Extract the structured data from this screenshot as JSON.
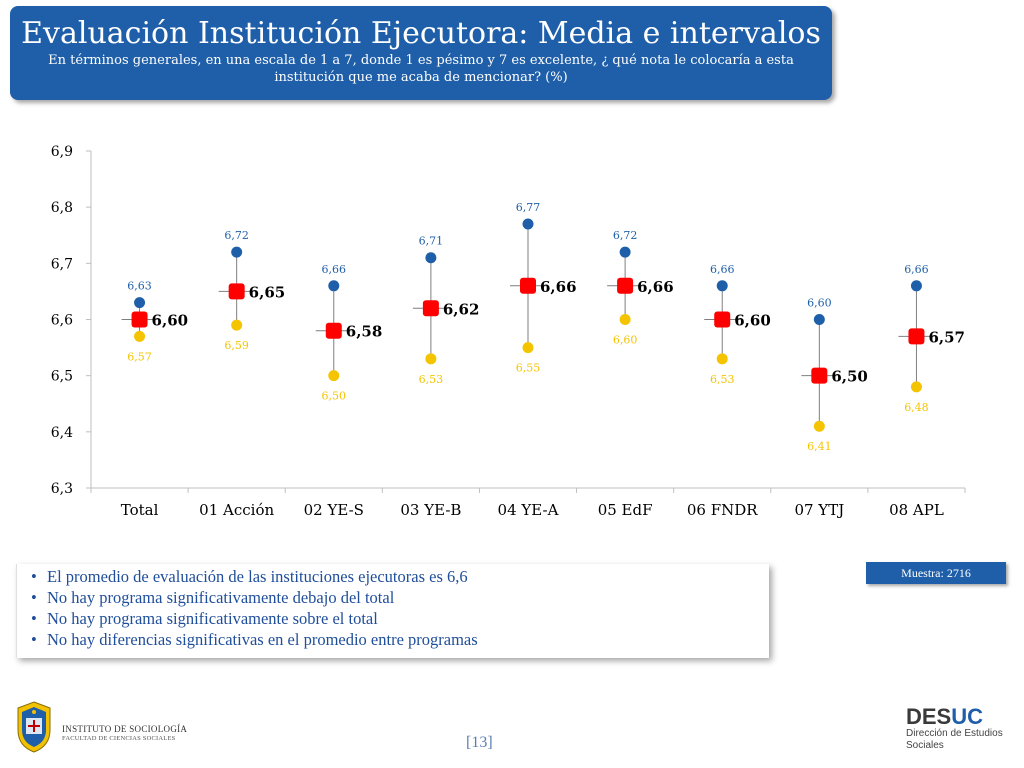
{
  "header": {
    "title": "Evaluación Institución Ejecutora: Media e intervalos",
    "subtitle": "En términos generales, en una escala de 1 a 7, donde 1 es pésimo y 7 es excelente, ¿ qué nota le colocaría a esta institución que me acaba de mencionar? (%)"
  },
  "chart_data": {
    "type": "scatter",
    "categories": [
      "Total",
      "01 Acción",
      "02 YE-S",
      "03 YE-B",
      "04 YE-A",
      "05 EdF",
      "06 FNDR",
      "07 YTJ",
      "08 APL"
    ],
    "upper": [
      6.63,
      6.72,
      6.66,
      6.71,
      6.77,
      6.72,
      6.66,
      6.6,
      6.66
    ],
    "mean": [
      6.6,
      6.65,
      6.58,
      6.62,
      6.66,
      6.66,
      6.6,
      6.5,
      6.57
    ],
    "lower": [
      6.57,
      6.59,
      6.5,
      6.53,
      6.55,
      6.6,
      6.53,
      6.41,
      6.48
    ],
    "upper_labels": [
      "6,63",
      "6,72",
      "6,66",
      "6,71",
      "6,77",
      "6,72",
      "6,66",
      "6,60",
      "6,66"
    ],
    "mean_labels": [
      "6,60",
      "6,65",
      "6,58",
      "6,62",
      "6,66",
      "6,66",
      "6,60",
      "6,50",
      "6,57"
    ],
    "lower_labels": [
      "6,57",
      "6,59",
      "6,50",
      "6,53",
      "6,55",
      "6,60",
      "6,53",
      "6,41",
      "6,48"
    ],
    "ylim": [
      6.3,
      6.9
    ],
    "yticks": [
      6.3,
      6.4,
      6.5,
      6.6,
      6.7,
      6.8,
      6.9
    ],
    "ytick_labels": [
      "6,3",
      "6,4",
      "6,5",
      "6,6",
      "6,7",
      "6,8",
      "6,9"
    ],
    "colors": {
      "upper": "#1f5fa9",
      "mean": "#ff0000",
      "lower": "#f5c400",
      "axis": "#bfbfbf",
      "whisker": "#7f7f7f"
    }
  },
  "notes": [
    "El promedio de evaluación de las instituciones ejecutoras es 6,6",
    "No hay programa significativamente debajo del total",
    "No hay programa significativamente sobre el total",
    "No hay diferencias significativas en el promedio entre programas"
  ],
  "muestra": "Muestra: 2716",
  "page_number": "[13]",
  "logo_left": {
    "name": "INSTITUTO DE SOCIOLOGÍA",
    "sub": "FACULTAD DE CIENCIAS SOCIALES"
  },
  "logo_right": {
    "word_a": "DES",
    "word_b": "UC",
    "line1": "Dirección de Estudios",
    "line2": "Sociales"
  }
}
